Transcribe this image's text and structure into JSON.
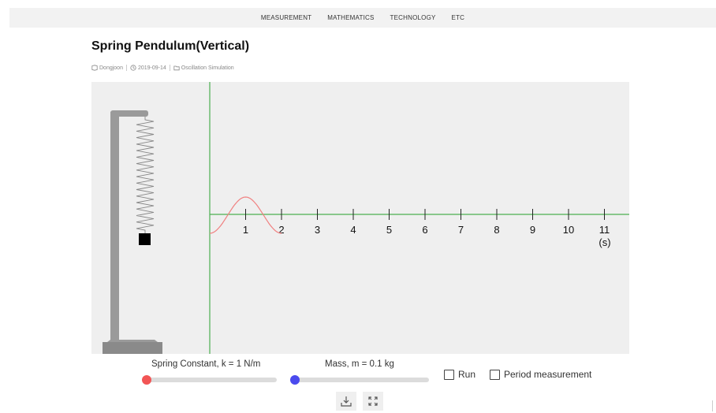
{
  "nav": {
    "items": [
      "MEASUREMENT",
      "MATHEMATICS",
      "TECHNOLOGY",
      "ETC"
    ]
  },
  "post": {
    "title": "Spring Pendulum(Vertical)",
    "author": "Dongjoon",
    "date": "2019-09-14",
    "category": "Oscillation Simulation"
  },
  "simulation": {
    "graph": {
      "x_ticks": [
        "1",
        "2",
        "3",
        "4",
        "5",
        "6",
        "7",
        "8",
        "9",
        "10",
        "11"
      ],
      "x_unit": "(s)",
      "axis_color": "#4caf50",
      "curve_color": "#f08080"
    },
    "controls": {
      "spring_constant_label": "Spring Constant, k = 1 N/m",
      "spring_constant_color": "#f25555",
      "spring_constant_fraction": 0.0,
      "mass_label": "Mass, m = 0.1 kg",
      "mass_color": "#4a4aee",
      "mass_fraction": 0.0,
      "run_label": "Run",
      "run_checked": false,
      "period_label": "Period measurement",
      "period_checked": false
    },
    "buttons": {
      "download_icon": "download-icon",
      "fullscreen_icon": "fullscreen-icon"
    }
  }
}
